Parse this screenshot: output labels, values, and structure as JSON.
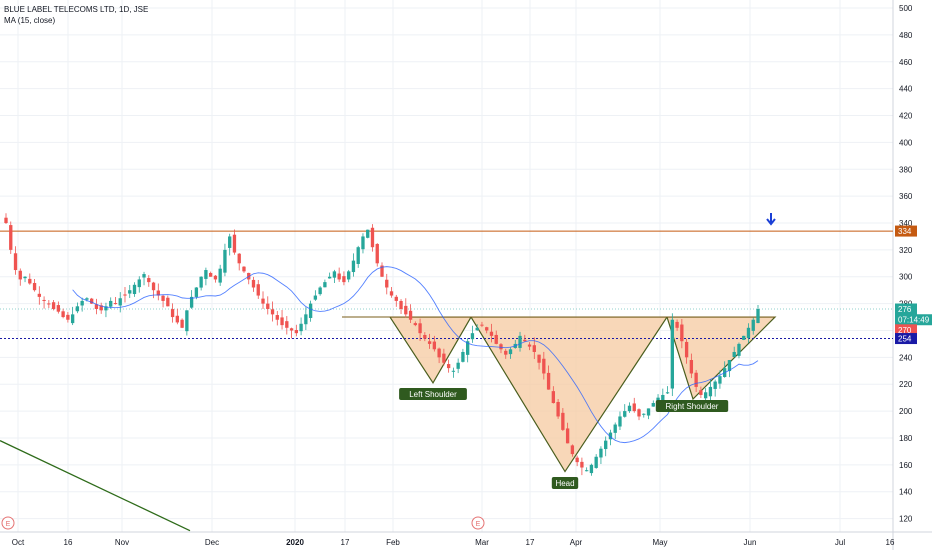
{
  "legend": {
    "symbol": "BLUE LABEL TELECOMS LTD, 1D, JSE",
    "ma": "MA (15, close)"
  },
  "colors": {
    "up": "#26a69a",
    "down": "#ef5350",
    "ma": "#2962ff",
    "resistance": "#c55a11",
    "support": "#1a1aa6",
    "neckline": "#7a5c1a",
    "pattern_fill": "#f5c9a0",
    "pattern_edge": "#4a5e1e",
    "label_bg": "#2f5a1f",
    "trend": "#2e6b1a",
    "arrow": "#1a3fd6"
  },
  "chart_data": {
    "type": "candlestick",
    "title": "BLUE LABEL TELECOMS LTD, 1D, JSE",
    "indicator": "MA (15, close)",
    "x_ticks": [
      "Oct",
      "16",
      "Nov",
      "Dec",
      "2020",
      "17",
      "Feb",
      "Mar",
      "17",
      "Apr",
      "May",
      "Jun",
      "Jul",
      "16"
    ],
    "y_ticks": [
      120,
      140,
      160,
      180,
      200,
      220,
      240,
      260,
      280,
      300,
      320,
      340,
      360,
      380,
      400,
      420,
      440,
      460,
      480,
      500
    ],
    "ylim": [
      110,
      506
    ],
    "grid": true,
    "price_tags": [
      {
        "value": "334",
        "price": 334,
        "color": "#c55a11"
      },
      {
        "value": "276",
        "price": 276,
        "color": "#26a69a"
      },
      {
        "value": "07:14:49",
        "price": 268,
        "color": "#26a69a"
      },
      {
        "value": "270",
        "price": 260.5,
        "color": "#ef5350"
      },
      {
        "value": "254",
        "price": 254,
        "color": "#1a1aa6"
      }
    ],
    "levels": {
      "resistance": 334,
      "support": 254,
      "neckline": 270
    },
    "pattern": {
      "type": "inverse head and shoulders",
      "points": [
        {
          "label": "Left Shoulder",
          "price": 221
        },
        {
          "label": "Head",
          "price": 155
        },
        {
          "label": "Right Shoulder",
          "price": 209
        }
      ]
    },
    "events": [
      "E",
      "E"
    ],
    "series": [
      {
        "name": "price",
        "kind": "candles",
        "approximate_closes": [
          340,
          320,
          305,
          298,
          300,
          295,
          290,
          285,
          282,
          280,
          276,
          274,
          270,
          268,
          272,
          278,
          282,
          284,
          280,
          276,
          275,
          278,
          282,
          280,
          284,
          286,
          290,
          294,
          298,
          302,
          296,
          290,
          286,
          282,
          278,
          270,
          266,
          262,
          275,
          285,
          292,
          300,
          305,
          300,
          298,
          306,
          320,
          330,
          318,
          310,
          304,
          298,
          292,
          286,
          280,
          276,
          272,
          268,
          264,
          262,
          260,
          258,
          265,
          272,
          280,
          286,
          292,
          296,
          300,
          304,
          298,
          296,
          304,
          312,
          322,
          330,
          335,
          322,
          310,
          300,
          292,
          286,
          282,
          276,
          272,
          268,
          264,
          258,
          254,
          250,
          246,
          240,
          236,
          232,
          230,
          236,
          244,
          252,
          258,
          262,
          264,
          260,
          256,
          250,
          246,
          242,
          246,
          250,
          256,
          252,
          248,
          244,
          236,
          228,
          216,
          206,
          196,
          186,
          176,
          168,
          162,
          158,
          156,
          160,
          166,
          172,
          178,
          184,
          190,
          196,
          200,
          204,
          200,
          196,
          198,
          202,
          206,
          210,
          212,
          214,
          268,
          262,
          252,
          240,
          228,
          218,
          212,
          214,
          218,
          222,
          226,
          232,
          238,
          244,
          250,
          256,
          262,
          268,
          276
        ]
      },
      {
        "name": "MA (15, close)",
        "kind": "line"
      }
    ]
  },
  "annotations": {
    "left_shoulder": "Left Shoulder",
    "head": "Head",
    "right_shoulder": "Right Shoulder",
    "event_marker": "E"
  }
}
